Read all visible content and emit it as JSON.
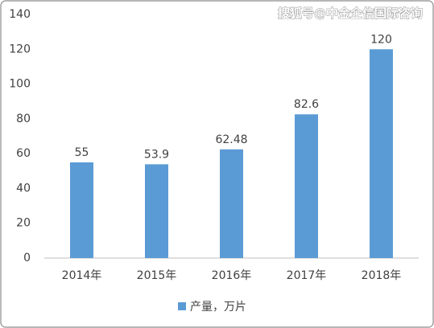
{
  "chart_data": {
    "type": "bar",
    "watermark": "搜狐号@中金企信国际咨询",
    "categories": [
      "2014年",
      "2015年",
      "2016年",
      "2017年",
      "2018年"
    ],
    "series": [
      {
        "name": "产量，万片",
        "color": "#5b9bd5",
        "values": [
          55,
          53.9,
          62.48,
          82.6,
          120
        ]
      }
    ],
    "ylim": [
      0,
      140
    ],
    "yticks": [
      0,
      20,
      40,
      60,
      80,
      100,
      120,
      140
    ],
    "grid": false,
    "legend": "bottom"
  }
}
